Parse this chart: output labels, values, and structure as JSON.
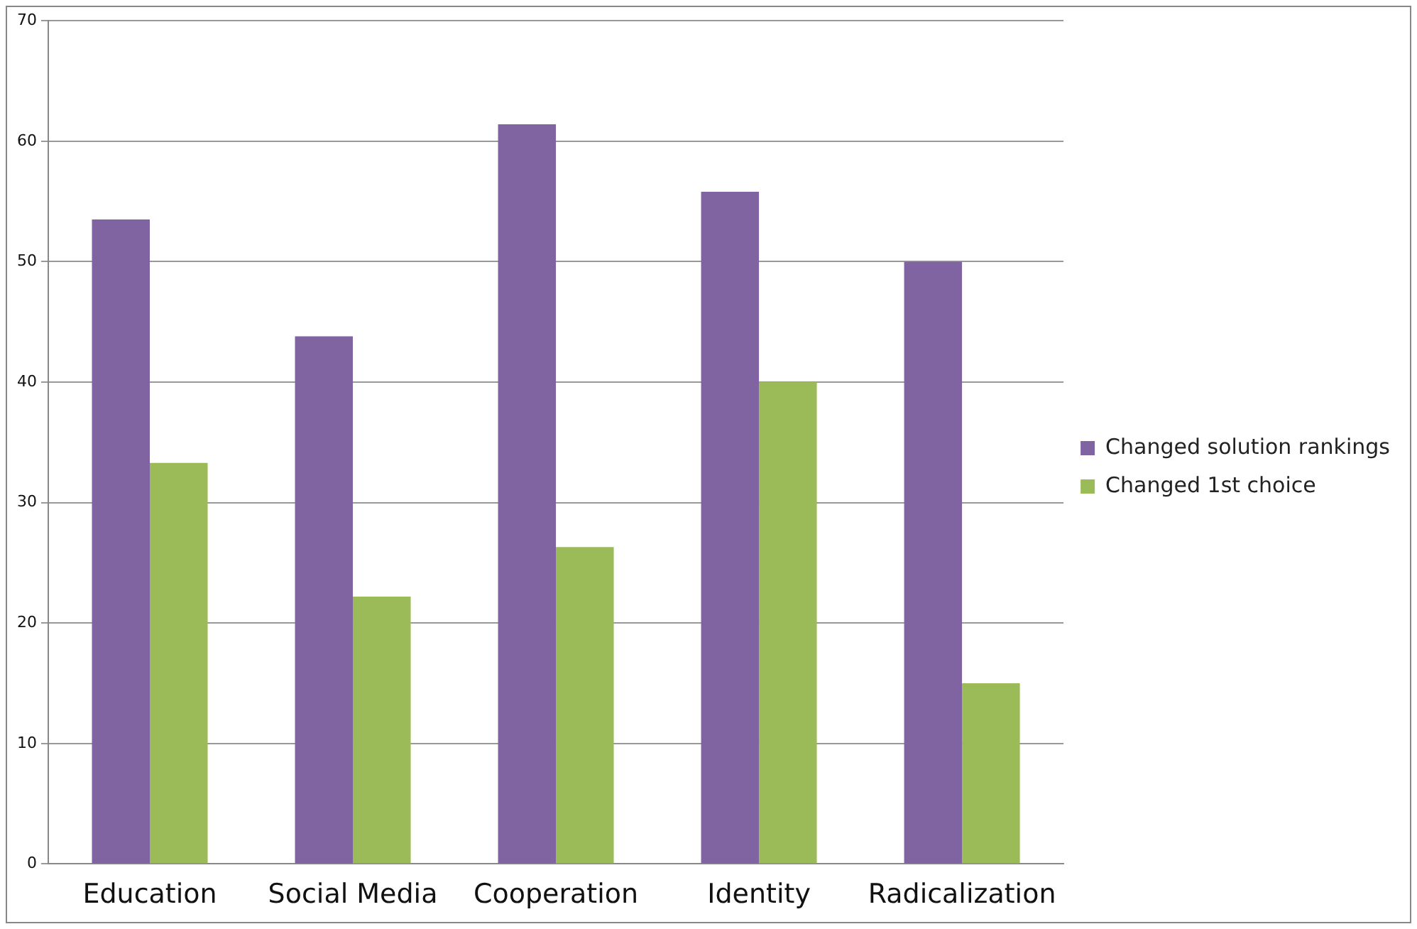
{
  "chart_data": {
    "type": "bar",
    "categories": [
      "Education",
      "Social Media",
      "Cooperation",
      "Identity",
      "Radicalization"
    ],
    "series": [
      {
        "name": "Changed solution rankings",
        "color": "#8064a2",
        "values": [
          53.5,
          43.8,
          61.4,
          55.8,
          50
        ]
      },
      {
        "name": "Changed 1st choice",
        "color": "#9bbb59",
        "values": [
          33.3,
          22.2,
          26.3,
          40,
          15
        ]
      }
    ],
    "ylim": [
      0,
      70
    ],
    "yticks": [
      0,
      10,
      20,
      30,
      40,
      50,
      60,
      70
    ],
    "grid": "y",
    "legend": "right"
  }
}
